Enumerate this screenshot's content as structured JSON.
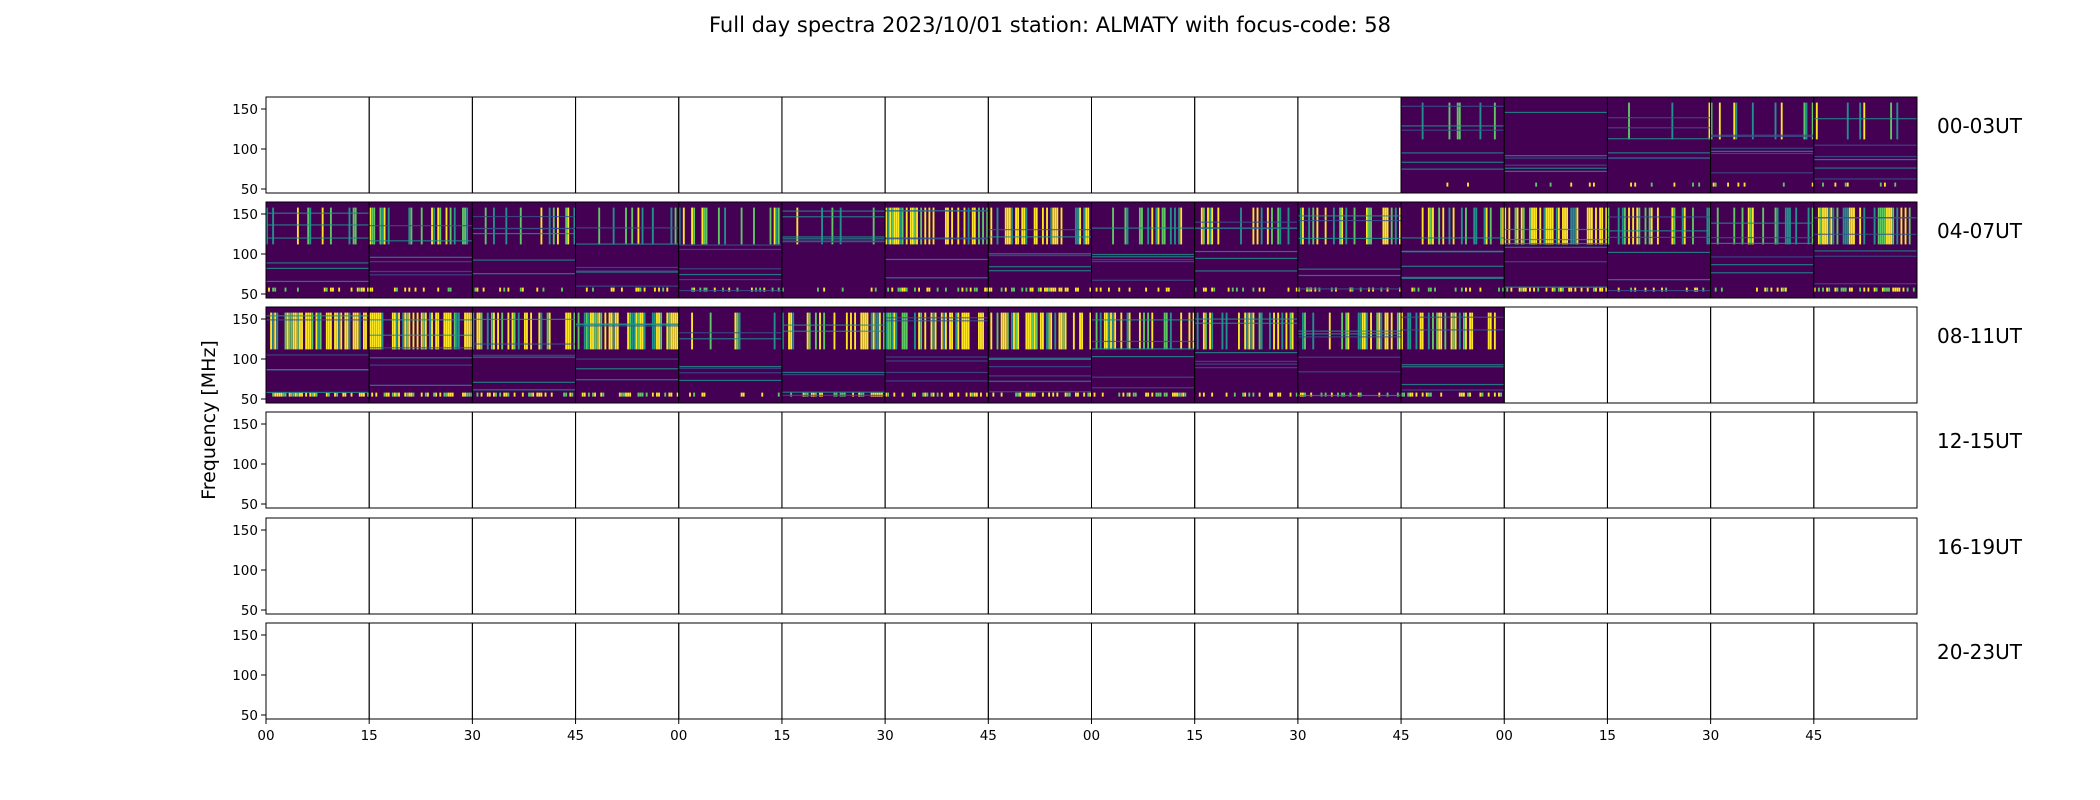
{
  "chart_data": {
    "type": "heatmap",
    "title": "Full day spectra 2023/10/01 station: ALMATY with focus-code: 58",
    "ylabel": "Frequency [MHz]",
    "ylim": [
      45,
      165
    ],
    "yticks": [
      50,
      100,
      150
    ],
    "xtick_labels": [
      "00",
      "15",
      "30",
      "45",
      "00",
      "15",
      "30",
      "45",
      "00",
      "15",
      "30",
      "45",
      "00",
      "15",
      "30",
      "45"
    ],
    "colormap": [
      "#440154",
      "#3b528b",
      "#21918c",
      "#5ec962",
      "#fde725"
    ],
    "rows": [
      {
        "label": "00-03UT",
        "panels": [
          0,
          0,
          0,
          0,
          0,
          0,
          0,
          0,
          0,
          0,
          0,
          0.15,
          0.12,
          0.1,
          0.15,
          0.2
        ]
      },
      {
        "label": "04-07UT",
        "panels": [
          0.25,
          0.3,
          0.3,
          0.25,
          0.2,
          0.25,
          0.5,
          0.65,
          0.3,
          0.35,
          0.45,
          0.4,
          0.75,
          0.45,
          0.3,
          0.6
        ]
      },
      {
        "label": "08-11UT",
        "panels": [
          0.75,
          0.75,
          0.6,
          0.55,
          0.15,
          0.5,
          0.6,
          0.65,
          0.55,
          0.4,
          0.45,
          0.5,
          0,
          0,
          0,
          0
        ]
      },
      {
        "label": "12-15UT",
        "panels": [
          0,
          0,
          0,
          0,
          0,
          0,
          0,
          0,
          0,
          0,
          0,
          0,
          0,
          0,
          0,
          0
        ]
      },
      {
        "label": "16-19UT",
        "panels": [
          0,
          0,
          0,
          0,
          0,
          0,
          0,
          0,
          0,
          0,
          0,
          0,
          0,
          0,
          0,
          0
        ]
      },
      {
        "label": "20-23UT",
        "panels": [
          0,
          0,
          0,
          0,
          0,
          0,
          0,
          0,
          0,
          0,
          0,
          0,
          0,
          0,
          0,
          0
        ]
      }
    ]
  }
}
